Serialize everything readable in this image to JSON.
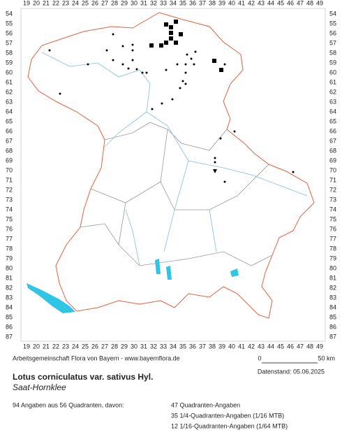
{
  "grid": {
    "columns": [
      19,
      20,
      21,
      22,
      23,
      24,
      25,
      26,
      27,
      28,
      29,
      30,
      31,
      32,
      33,
      34,
      35,
      36,
      37,
      38,
      39,
      40,
      41,
      42,
      43,
      44,
      45,
      46,
      47,
      48,
      49
    ],
    "rows": [
      54,
      55,
      56,
      57,
      58,
      59,
      60,
      61,
      62,
      63,
      64,
      65,
      66,
      67,
      68,
      69,
      70,
      71,
      72,
      73,
      74,
      75,
      76,
      77,
      78,
      79,
      80,
      81,
      82,
      83,
      84,
      85,
      86,
      87
    ]
  },
  "scale": {
    "start": "0",
    "end": "50 km"
  },
  "credit": "Arbeitsgemeinschaft Flora von Bayern - www.bayernflora.de",
  "date": "Datenstand: 05.06.2025",
  "title": "Lotus corniculatus var. sativus Hyl.",
  "subtitle": "Saat-Hornklee",
  "stats": {
    "summary": "94 Angaben aus 56 Quadranten, davon:",
    "lines": [
      "47 Quadranten-Angaben",
      "35 1/4-Quadranten-Angaben (1/16 MTB)",
      "12 1/16-Quadranten-Angaben (1/64 MTB)"
    ]
  }
}
